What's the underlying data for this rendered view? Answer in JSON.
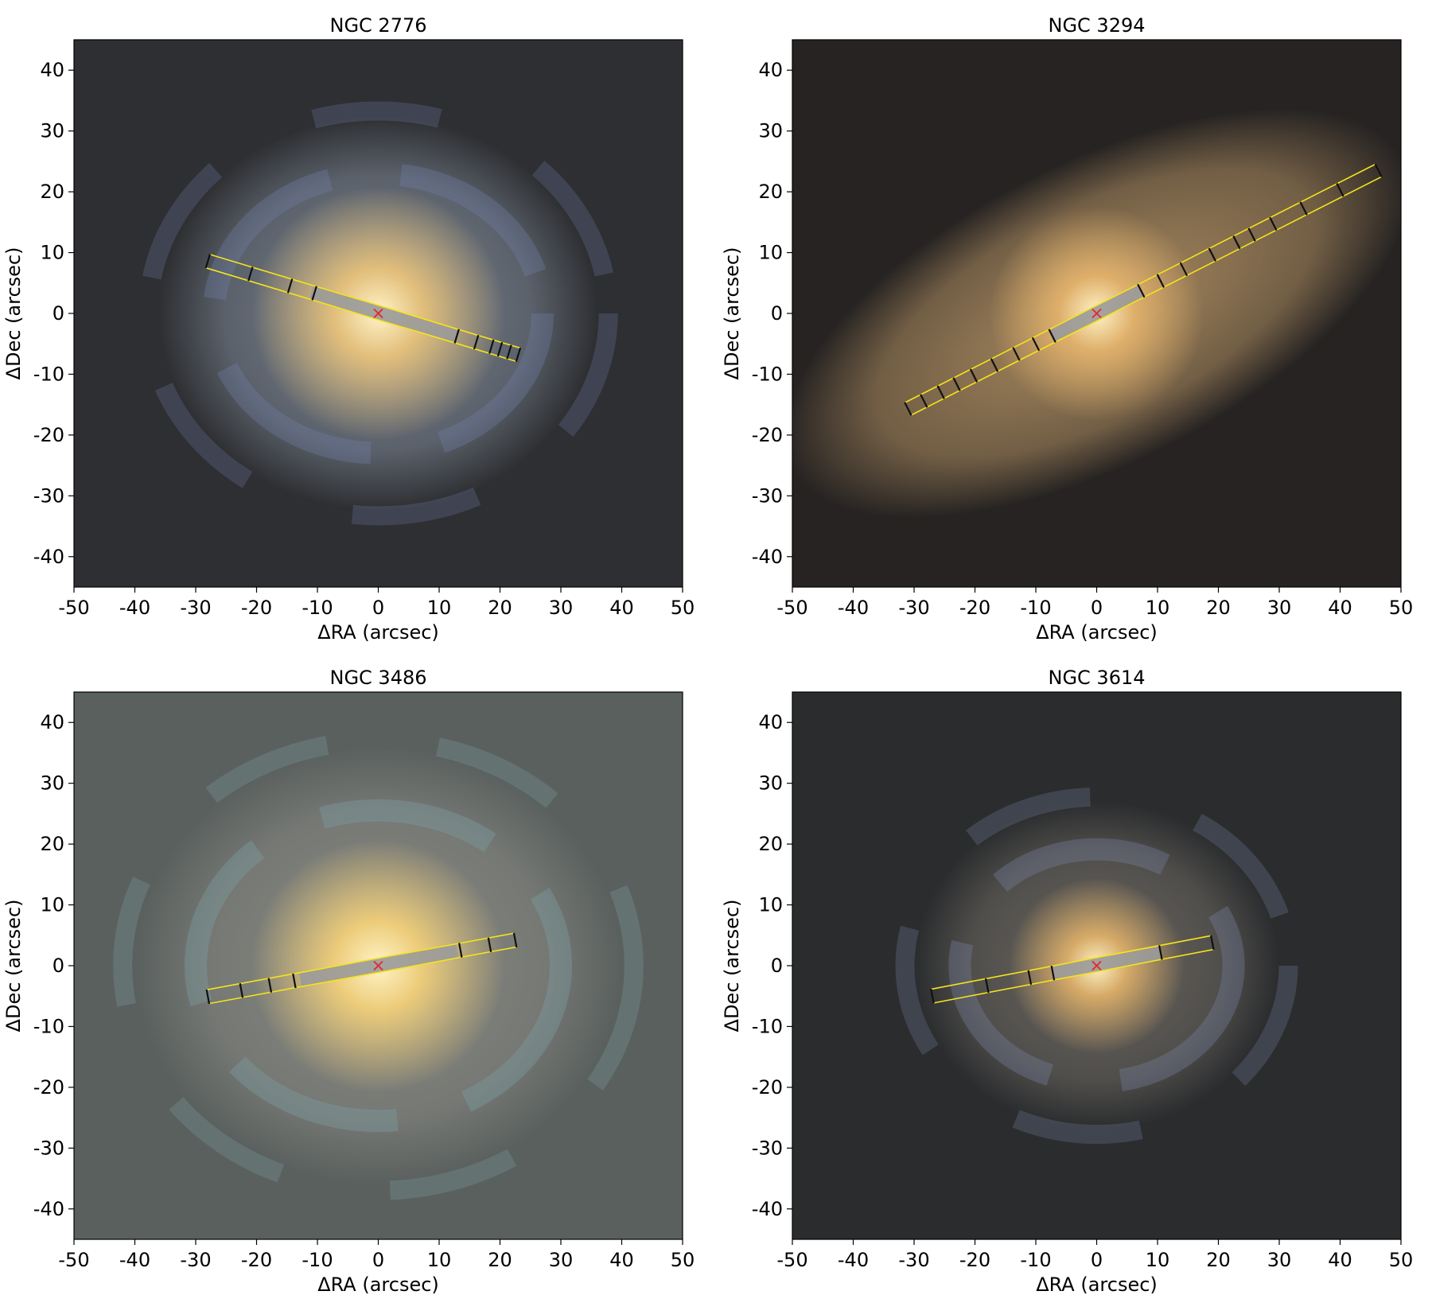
{
  "chart_data": [
    {
      "type": "scatter",
      "title": "NGC 2776",
      "xlabel": "ΔRA (arcsec)",
      "ylabel": "ΔDec (arcsec)",
      "xlim": [
        -50,
        50
      ],
      "ylim": [
        -45,
        45
      ],
      "xticks": [
        "-50",
        "-40",
        "-30",
        "-20",
        "-10",
        "0",
        "10",
        "20",
        "30",
        "40",
        "50"
      ],
      "yticks": [
        "40",
        "30",
        "20",
        "10",
        "0",
        "-10",
        "-20",
        "-30",
        "-40"
      ],
      "grid": false,
      "background": "galaxy color image",
      "galaxy": {
        "core_color": "#e8c27a",
        "disk_color": "#7f8a99",
        "arm_color": "#6f7fa6",
        "sky_color": "#2e2f32",
        "core_size": 13,
        "disk_size": 36,
        "arms": true
      },
      "slit": {
        "start": [
          -28,
          8.6
        ],
        "end": [
          23,
          -6.8
        ],
        "width": 2.3,
        "fill": "#9a9a9a",
        "gray_from": -11,
        "gray_to": 13,
        "edge_color": "#f5e31b"
      },
      "bin_edges_x": [
        -28,
        -21,
        -14.5,
        -10.5,
        12.9,
        16.1,
        18.6,
        20,
        21.5,
        23
      ],
      "center_marker": {
        "x": 0,
        "y": 0,
        "symbol": "x",
        "color": "#e6262b"
      }
    },
    {
      "type": "scatter",
      "title": "NGC 3294",
      "xlabel": "ΔRA (arcsec)",
      "ylabel": "ΔDec (arcsec)",
      "xlim": [
        -50,
        50
      ],
      "ylim": [
        -45,
        45
      ],
      "xticks": [
        "-50",
        "-40",
        "-30",
        "-20",
        "-10",
        "0",
        "10",
        "20",
        "30",
        "40",
        "50"
      ],
      "yticks": [
        "40",
        "30",
        "20",
        "10",
        "0",
        "-10",
        "-20",
        "-30",
        "-40"
      ],
      "grid": false,
      "background": "galaxy color image",
      "galaxy": {
        "core_color": "#e2b26c",
        "disk_color": "#b08f62",
        "arm_color": "#8a95a6",
        "sky_color": "#262322",
        "core_size": 11,
        "disk_size": 45,
        "arms": false
      },
      "slit": {
        "start": [
          -31,
          -15.7
        ],
        "end": [
          46.3,
          23.5
        ],
        "width": 2.3,
        "fill": "#9a9a9a",
        "gray_from": -7.3,
        "gray_to": 7.3,
        "edge_color": "#f5e31b"
      },
      "bin_edges_x": [
        -31,
        -28.4,
        -25.6,
        -23,
        -20.2,
        -16.8,
        -13.2,
        -10,
        -7.3,
        7.3,
        10.5,
        14.3,
        19,
        23,
        25.5,
        29,
        34,
        40,
        46.3
      ],
      "center_marker": {
        "x": 0,
        "y": 0,
        "symbol": "x",
        "color": "#e6262b"
      }
    },
    {
      "type": "scatter",
      "title": "NGC 3486",
      "xlabel": "ΔRA (arcsec)",
      "ylabel": "ΔDec (arcsec)",
      "xlim": [
        -50,
        50
      ],
      "ylim": [
        -45,
        45
      ],
      "xticks": [
        "-50",
        "-40",
        "-30",
        "-20",
        "-10",
        "0",
        "10",
        "20",
        "30",
        "40",
        "50"
      ],
      "yticks": [
        "40",
        "30",
        "20",
        "10",
        "0",
        "-10",
        "-20",
        "-30",
        "-40"
      ],
      "grid": false,
      "background": "galaxy color image",
      "galaxy": {
        "core_color": "#f2d07a",
        "disk_color": "#8c8c86",
        "arm_color": "#7fa3a8",
        "sky_color": "#5a605e",
        "core_size": 13,
        "disk_size": 40,
        "arms": true
      },
      "slit": {
        "start": [
          -28,
          -5.1
        ],
        "end": [
          22.5,
          4.2
        ],
        "width": 2.3,
        "fill": "#9a9a9a",
        "gray_from": -12.8,
        "gray_to": 13,
        "edge_color": "#f5e31b"
      },
      "bin_edges_x": [
        -28,
        -22.5,
        -17.8,
        -13.8,
        13.5,
        18.3,
        22.5
      ],
      "center_marker": {
        "x": 0,
        "y": 0,
        "symbol": "x",
        "color": "#e6262b"
      }
    },
    {
      "type": "scatter",
      "title": "NGC 3614",
      "xlabel": "ΔRA (arcsec)",
      "ylabel": "ΔDec (arcsec)",
      "xlim": [
        -50,
        50
      ],
      "ylim": [
        -45,
        45
      ],
      "xticks": [
        "-50",
        "-40",
        "-30",
        "-20",
        "-10",
        "0",
        "10",
        "20",
        "30",
        "40",
        "50"
      ],
      "yticks": [
        "40",
        "30",
        "20",
        "10",
        "0",
        "-10",
        "-20",
        "-30",
        "-40"
      ],
      "grid": false,
      "background": "galaxy color image",
      "galaxy": {
        "core_color": "#dcae68",
        "disk_color": "#6f6a63",
        "arm_color": "#7884a3",
        "sky_color": "#2a2c2e",
        "core_size": 9,
        "disk_size": 30,
        "arms": true
      },
      "slit": {
        "start": [
          -27,
          -5
        ],
        "end": [
          19,
          3.8
        ],
        "width": 2.3,
        "fill": "#9a9a9a",
        "gray_from": -7.2,
        "gray_to": 10.5,
        "edge_color": "#f5e31b"
      },
      "bin_edges_x": [
        -27,
        -18,
        -11,
        -7.2,
        10.5,
        19
      ],
      "center_marker": {
        "x": 0,
        "y": 0,
        "symbol": "x",
        "color": "#e6262b"
      }
    }
  ]
}
